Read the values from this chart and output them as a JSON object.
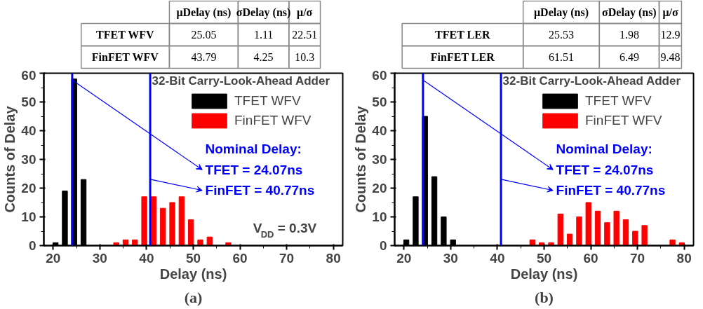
{
  "chart_data": [
    {
      "type": "heatmap",
      "categories": [
        "μDelay (ns)",
        "σDelay (ns)",
        "μ/σ"
      ],
      "y_categories": [
        "TFET WFV",
        "FinFET WFV"
      ],
      "cells": [
        [
          25.05,
          1.11,
          22.51
        ],
        [
          43.79,
          4.25,
          10.3
        ]
      ],
      "data_labels": true
    },
    {
      "type": "bar",
      "title": "32-Bit Carry-Look-Ahead Adder",
      "xlabel": "Delay (ns)",
      "ylabel": "Counts of Delay",
      "xlim": [
        18,
        82
      ],
      "ylim": [
        0,
        60
      ],
      "xticks": [
        20,
        30,
        40,
        50,
        60,
        70,
        80
      ],
      "yticks": [
        0,
        10,
        20,
        30,
        40,
        50,
        60
      ],
      "legend": "top right",
      "series": [
        {
          "name": "TFET WFV",
          "color": "#000000",
          "x": [
            20.5,
            22.5,
            24.5,
            26.5
          ],
          "values": [
            1,
            19,
            58,
            23
          ]
        },
        {
          "name": "FinFET WFV",
          "color": "#ff0000",
          "x": [
            33.5,
            35.5,
            37.5,
            39.5,
            41.5,
            43.5,
            45.5,
            47.5,
            49.5,
            51.5,
            53.5,
            57.5
          ],
          "values": [
            1,
            2,
            2,
            17,
            17,
            13,
            15,
            17,
            9,
            2,
            3,
            1
          ]
        }
      ],
      "ref_lines": [
        {
          "axis": "x",
          "value": 24.07,
          "label": "TFET = 24.07ns",
          "color": "#0000ff"
        },
        {
          "axis": "x",
          "value": 40.77,
          "label": "FinFET = 40.77ns",
          "color": "#0000ff"
        }
      ],
      "annotations": [
        "Nominal Delay:",
        "V$_{DD}$ = 0.3V",
        "(a)"
      ]
    },
    {
      "type": "heatmap",
      "categories": [
        "μDelay (ns)",
        "σDelay (ns)",
        "μ/σ"
      ],
      "y_categories": [
        "TFET LER",
        "FinFET LER"
      ],
      "cells": [
        [
          25.53,
          1.98,
          12.9
        ],
        [
          61.51,
          6.49,
          9.48
        ]
      ],
      "data_labels": true
    },
    {
      "type": "bar",
      "title": "32-Bit Carry-Look-Ahead Adder",
      "xlabel": "Delay (ns)",
      "ylabel": "Counts of Delay",
      "xlim": [
        18,
        82
      ],
      "ylim": [
        0,
        60
      ],
      "xticks": [
        20,
        30,
        40,
        50,
        60,
        70,
        80
      ],
      "yticks": [
        0,
        10,
        20,
        30,
        40,
        50,
        60
      ],
      "legend": "top right",
      "series": [
        {
          "name": "TFET WFV",
          "color": "#000000",
          "x": [
            20.5,
            22.5,
            24.5,
            26.5,
            28.5,
            30.5
          ],
          "values": [
            2,
            17,
            45,
            24,
            10,
            2
          ]
        },
        {
          "name": "FinFET WFV",
          "color": "#ff0000",
          "x": [
            47.5,
            49.5,
            51.5,
            53.5,
            55.5,
            57.5,
            59.5,
            61.5,
            63.5,
            65.5,
            67.5,
            69.5,
            71.5,
            77.5,
            79.5
          ],
          "values": [
            2,
            1,
            1,
            11,
            4,
            10,
            15,
            12,
            8,
            12,
            9,
            5,
            7,
            2,
            1
          ]
        }
      ],
      "ref_lines": [
        {
          "axis": "x",
          "value": 24.07,
          "label": "TFET = 24.07ns",
          "color": "#0000ff"
        },
        {
          "axis": "x",
          "value": 40.77,
          "label": "FinFET = 40.77ns",
          "color": "#0000ff"
        }
      ],
      "annotations": [
        "Nominal Delay:",
        "(b)"
      ]
    }
  ]
}
